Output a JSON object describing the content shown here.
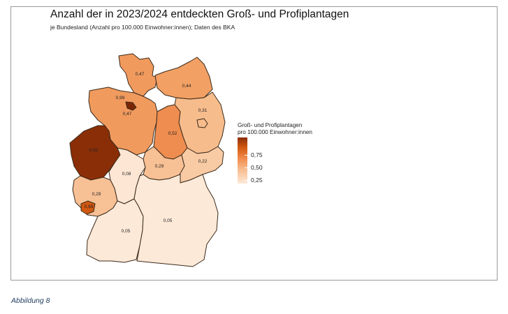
{
  "figure": {
    "title": "Anzahl der in 2023/2024 entdeckten Groß- und Profiplantagen",
    "subtitle": "je Bundesland (Anzahl pro 100.000 Einwohner:innen); Daten des BKA",
    "caption": "Abbildung 8"
  },
  "legend": {
    "title_line1": "Groß- und Profiplantagen",
    "title_line2": "pro 100.000 Einwohner:innen",
    "ticks": [
      "0,75",
      "0,50",
      "0,25"
    ]
  },
  "colors": {
    "low": "#fde9d8",
    "mid": "#f0884a",
    "high": "#8a2e07",
    "border": "#3a2a1a",
    "frame": "#9a9a9a"
  },
  "states": [
    {
      "key": "sh",
      "value": "0,47",
      "fill": "#f19a5e"
    },
    {
      "key": "mv",
      "value": "0,44",
      "fill": "#f2a064"
    },
    {
      "key": "hb",
      "value": "0,99",
      "fill": "#7a2604"
    },
    {
      "key": "ni",
      "value": "0,47",
      "fill": "#f19a5e"
    },
    {
      "key": "bb",
      "value": "0,31",
      "fill": "#f7bc8c"
    },
    {
      "key": "be",
      "value": "",
      "fill": "#f7bc8c"
    },
    {
      "key": "st",
      "value": "0,52",
      "fill": "#ee8d4f"
    },
    {
      "key": "nw",
      "value": "0,92",
      "fill": "#8a2e07"
    },
    {
      "key": "he",
      "value": "0,08",
      "fill": "#fde6d3"
    },
    {
      "key": "th",
      "value": "0,29",
      "fill": "#f8c095"
    },
    {
      "key": "sn",
      "value": "0,22",
      "fill": "#f9cba4"
    },
    {
      "key": "rp",
      "value": "0,29",
      "fill": "#f8c095"
    },
    {
      "key": "sl",
      "value": "0,69",
      "fill": "#d05812"
    },
    {
      "key": "bw",
      "value": "0,05",
      "fill": "#fde9d8"
    },
    {
      "key": "by",
      "value": "0,05",
      "fill": "#fde9d8"
    }
  ]
}
